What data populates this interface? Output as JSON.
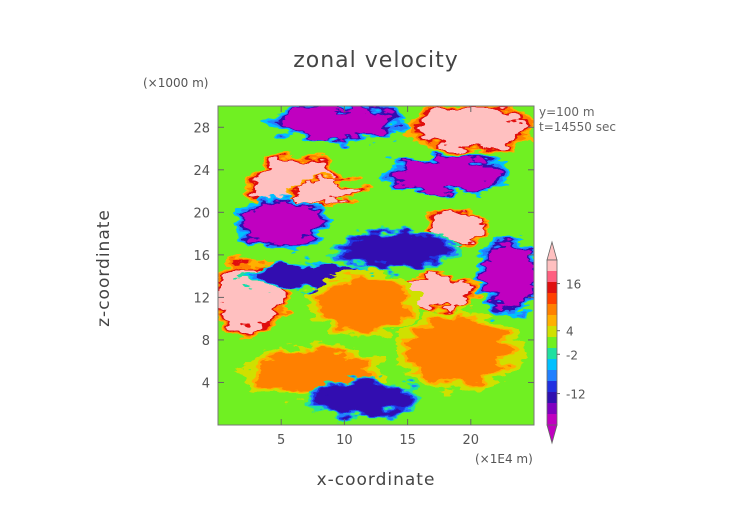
{
  "chart_data": {
    "type": "heatmap",
    "title": "zonal velocity",
    "xlabel": "x-coordinate",
    "ylabel": "z-coordinate",
    "x_units": "(×1E4 m)",
    "y_units": "(×1000 m)",
    "annotations": [
      "y=100 m",
      "t=14550 sec"
    ],
    "xlim": [
      0,
      25
    ],
    "ylim": [
      0,
      30
    ],
    "x_ticks": [
      5,
      10,
      15,
      20
    ],
    "y_ticks": [
      4,
      8,
      12,
      16,
      20,
      24,
      28
    ],
    "colorbar": {
      "tick_labels": [
        "16",
        "4",
        "-2",
        "-12"
      ],
      "tick_values": [
        16,
        4,
        -2,
        -12
      ],
      "range": [
        -20,
        22
      ],
      "colors": [
        "#c000c0",
        "#8000c0",
        "#3010b0",
        "#2030e0",
        "#2080ff",
        "#00c0ff",
        "#20e0a0",
        "#70f020",
        "#d0e000",
        "#ffb000",
        "#ff8000",
        "#ff4000",
        "#e01010",
        "#ff6080",
        "#ffc0c0"
      ]
    },
    "features": [
      {
        "region": "x 0–5, z 9–15",
        "value": 20
      },
      {
        "region": "x 3–9, z 20–25",
        "value": 20
      },
      {
        "region": "x 16–24, z 26–30",
        "value": 20
      },
      {
        "region": "x 17–21, z 17–20",
        "value": 20
      },
      {
        "region": "x 6–11, z 21–23",
        "value": 20
      },
      {
        "region": "x 15–20, z 11–14",
        "value": 20
      },
      {
        "region": "x 5–14, z 27–30",
        "value": -18
      },
      {
        "region": "x 2–8, z 17–21",
        "value": -18
      },
      {
        "region": "x 14–22, z 22–25",
        "value": -18
      },
      {
        "region": "x 21–25, z 11–17",
        "value": -18
      },
      {
        "region": "x 10–18, z 15–18",
        "value": -14
      },
      {
        "region": "x 3–12, z 13–15",
        "value": -12
      },
      {
        "region": "x 8–15, z 9–14",
        "value": 8
      },
      {
        "region": "x 15–23, z 4–10",
        "value": 8
      },
      {
        "region": "x 3–12, z 3–7",
        "value": 8
      },
      {
        "region": "x 8–15, z 1–4",
        "value": -14
      }
    ]
  }
}
